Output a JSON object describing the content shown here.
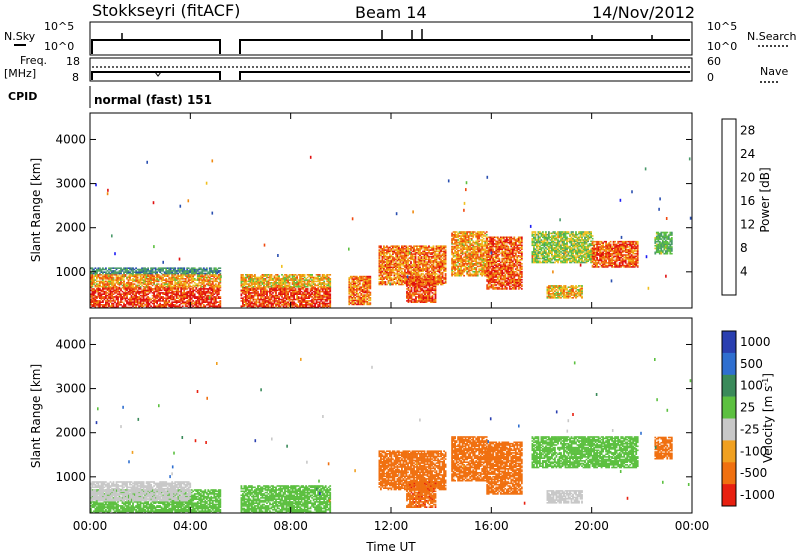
{
  "header": {
    "station": "Stokkseyri (fitACF)",
    "beam": "Beam 14",
    "date": "14/Nov/2012"
  },
  "top_panels": {
    "nsky_label": "N.Sky",
    "nsearch_label": "N.Search",
    "nsky_ticks": [
      "10^5",
      "10^0"
    ],
    "nsearch_ticks": [
      "10^5",
      "10^0"
    ],
    "freq_label_1": "Freq.",
    "freq_label_2": "[MHz]",
    "freq_ticks": [
      "18",
      "8"
    ],
    "nave_label": "Nave",
    "nave_ticks": [
      "60",
      "0"
    ],
    "cpid_label": "CPID",
    "cpid_text": "normal (fast) 151"
  },
  "colors": {
    "power": [
      "#1c1cf5",
      "#2a4fb0",
      "#4a9a6a",
      "#5cc040",
      "#f0c020",
      "#f08a10",
      "#f04a10",
      "#e01010"
    ],
    "velocity": [
      "#2a3fb0",
      "#2f6fd0",
      "#3a8a5a",
      "#5cc040",
      "#c8c8c8",
      "#f0a020",
      "#f07010",
      "#e82010"
    ],
    "ground_scatter": "#bebebe"
  },
  "chart_data": [
    {
      "type": "heatmap",
      "name": "power",
      "ylabel": "Slant Range [km]",
      "xlabel": "",
      "x_ticks": [
        "00:00",
        "04:00",
        "08:00",
        "12:00",
        "16:00",
        "20:00",
        "00:00"
      ],
      "xlim_hours": [
        0,
        24
      ],
      "ylim": [
        180,
        4600
      ],
      "y_ticks": [
        1000,
        2000,
        3000,
        4000
      ],
      "colorbar_label": "Power [dB]",
      "colorbar_ticks": [
        4,
        8,
        12,
        16,
        20,
        24,
        28
      ],
      "colorbar_range": [
        0,
        30
      ],
      "data_gap_hours": [
        5.2,
        6.0
      ],
      "regions": [
        {
          "t": [
            0.0,
            5.2
          ],
          "r": [
            180,
            650
          ],
          "v": 27
        },
        {
          "t": [
            0.0,
            5.2
          ],
          "r": [
            650,
            950
          ],
          "v": 20
        },
        {
          "t": [
            0.0,
            5.2
          ],
          "r": [
            950,
            1100
          ],
          "v": 9
        },
        {
          "t": [
            6.0,
            9.6
          ],
          "r": [
            180,
            650
          ],
          "v": 26
        },
        {
          "t": [
            6.0,
            9.6
          ],
          "r": [
            650,
            950
          ],
          "v": 18
        },
        {
          "t": [
            10.3,
            11.2
          ],
          "r": [
            250,
            900
          ],
          "v": 22
        },
        {
          "t": [
            11.5,
            14.2
          ],
          "r": [
            700,
            1600
          ],
          "v": 22
        },
        {
          "t": [
            12.6,
            13.8
          ],
          "r": [
            300,
            900
          ],
          "v": 26
        },
        {
          "t": [
            14.4,
            15.8
          ],
          "r": [
            900,
            1900
          ],
          "v": 20
        },
        {
          "t": [
            15.8,
            17.2
          ],
          "r": [
            600,
            1800
          ],
          "v": 24
        },
        {
          "t": [
            17.6,
            20.0
          ],
          "r": [
            1200,
            1900
          ],
          "v": 14
        },
        {
          "t": [
            20.0,
            21.8
          ],
          "r": [
            1100,
            1700
          ],
          "v": 24
        },
        {
          "t": [
            18.2,
            19.6
          ],
          "r": [
            400,
            700
          ],
          "v": 18
        },
        {
          "t": [
            22.5,
            23.2
          ],
          "r": [
            1400,
            1900
          ],
          "v": 12
        }
      ]
    },
    {
      "type": "heatmap",
      "name": "velocity",
      "ylabel": "Slant Range [km]",
      "xlabel": "Time UT",
      "x_ticks": [
        "00:00",
        "04:00",
        "08:00",
        "12:00",
        "16:00",
        "20:00",
        "00:00"
      ],
      "xlim_hours": [
        0,
        24
      ],
      "ylim": [
        180,
        4600
      ],
      "y_ticks": [
        1000,
        2000,
        3000,
        4000
      ],
      "colorbar_label": "Velocity [m s^-1]",
      "colorbar_ticks": [
        "1000",
        "500",
        "100",
        "25",
        "-25",
        "-100",
        "-500",
        "-1000"
      ],
      "data_gap_hours": [
        5.2,
        6.0
      ],
      "regions": [
        {
          "t": [
            0.0,
            5.2
          ],
          "r": [
            180,
            700
          ],
          "v": 50
        },
        {
          "t": [
            0.0,
            4.0
          ],
          "r": [
            450,
            900
          ],
          "v": 0
        },
        {
          "t": [
            6.0,
            9.6
          ],
          "r": [
            180,
            800
          ],
          "v": 60
        },
        {
          "t": [
            11.5,
            14.2
          ],
          "r": [
            700,
            1600
          ],
          "v": -150
        },
        {
          "t": [
            12.6,
            13.8
          ],
          "r": [
            300,
            900
          ],
          "v": -400
        },
        {
          "t": [
            14.4,
            15.8
          ],
          "r": [
            900,
            1900
          ],
          "v": -150
        },
        {
          "t": [
            15.8,
            17.2
          ],
          "r": [
            600,
            1800
          ],
          "v": -300
        },
        {
          "t": [
            17.6,
            21.8
          ],
          "r": [
            1200,
            1900
          ],
          "v": 40
        },
        {
          "t": [
            18.2,
            19.6
          ],
          "r": [
            400,
            700
          ],
          "v": 0
        },
        {
          "t": [
            22.5,
            23.2
          ],
          "r": [
            1400,
            1900
          ],
          "v": -150
        }
      ]
    }
  ]
}
